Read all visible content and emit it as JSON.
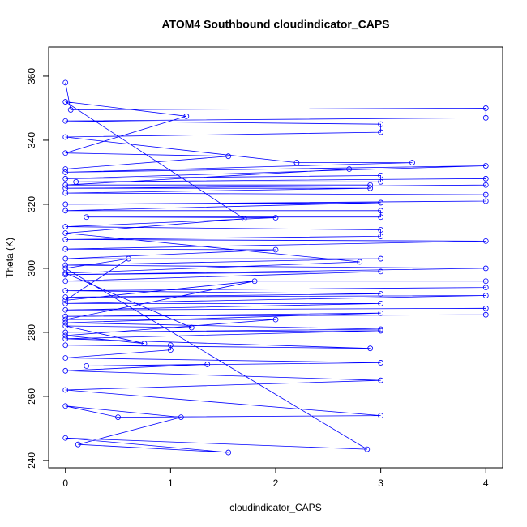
{
  "chart_data": {
    "type": "line",
    "title": "ATOM4 Southbound cloudindicator_CAPS",
    "x_label": "cloudindicator_CAPS",
    "y_label": "Theta (K)",
    "color": "#0000ff",
    "xlim": [
      -0.16,
      4.16
    ],
    "ylim": [
      237.7,
      369.1
    ],
    "xticks": [
      0,
      1,
      2,
      3,
      4
    ],
    "yticks": [
      240,
      260,
      280,
      300,
      320,
      340,
      360
    ],
    "x": [
      0,
      0.05,
      4,
      4,
      0,
      3,
      3,
      0,
      2.2,
      3.3,
      0,
      4,
      0,
      3,
      3,
      0.1,
      4,
      4,
      0,
      2.9,
      0,
      4,
      4,
      0,
      3,
      0,
      3,
      3,
      0.2,
      2,
      0,
      3,
      3,
      0,
      4,
      0,
      2,
      0,
      3,
      0,
      4,
      0,
      3,
      0,
      4,
      4,
      0,
      3,
      0,
      4,
      0,
      3,
      0,
      4,
      4,
      0,
      3,
      0,
      3,
      0,
      3,
      0,
      2.9,
      0,
      1,
      1,
      0,
      3,
      0.2,
      1.35,
      0,
      3,
      0,
      3,
      0.5,
      0,
      1.1,
      0.12,
      1.55,
      0,
      2.87,
      0,
      0.6,
      0,
      1.8,
      0,
      2,
      0,
      0.75,
      0,
      1.2,
      0,
      2.8,
      0,
      1.7,
      0,
      1.15,
      0,
      1.55,
      0,
      2.7,
      0,
      2.9
    ],
    "values": [
      358,
      349.5,
      350,
      347,
      346,
      345,
      342.5,
      341,
      333,
      333,
      330,
      332,
      328,
      329,
      327,
      327,
      328,
      326,
      325,
      325,
      323.5,
      323,
      321,
      320,
      320.5,
      318,
      318,
      316,
      316,
      315.8,
      313,
      312,
      310,
      309,
      308.5,
      306,
      305.8,
      303,
      303,
      301,
      300,
      298,
      299,
      296,
      296,
      294,
      293,
      292,
      291,
      291.5,
      289,
      289,
      287,
      287.5,
      285.5,
      285,
      286,
      283,
      281,
      280,
      280.5,
      278,
      275,
      276,
      276,
      274.5,
      272,
      270.5,
      269.5,
      270,
      268,
      265,
      262,
      254,
      253.5,
      257,
      253.5,
      245,
      242.5,
      247,
      243.5,
      300,
      303,
      290,
      296,
      284,
      284,
      279,
      276.5,
      282,
      281.5,
      298.5,
      302,
      311,
      315.5,
      352,
      347.5,
      336,
      335,
      331,
      331,
      326,
      326
    ]
  }
}
